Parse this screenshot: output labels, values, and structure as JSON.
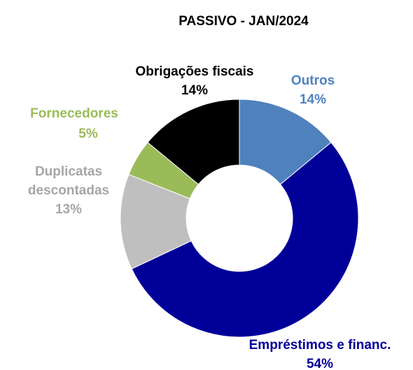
{
  "chart_data": {
    "type": "donut",
    "title": "PASSIVO - JAN/2024",
    "categories": [
      "Outros",
      "Empréstimos e financ.",
      "Duplicatas descontadas",
      "Fornecedores",
      "Obrigações fiscais"
    ],
    "values": [
      14,
      54,
      13,
      5,
      14
    ],
    "value_labels": [
      "14%",
      "54%",
      "13%",
      "5%",
      "14%"
    ],
    "colors": [
      "#4f81bd",
      "#000099",
      "#bfbfbf",
      "#9bbb59",
      "#000000"
    ]
  }
}
